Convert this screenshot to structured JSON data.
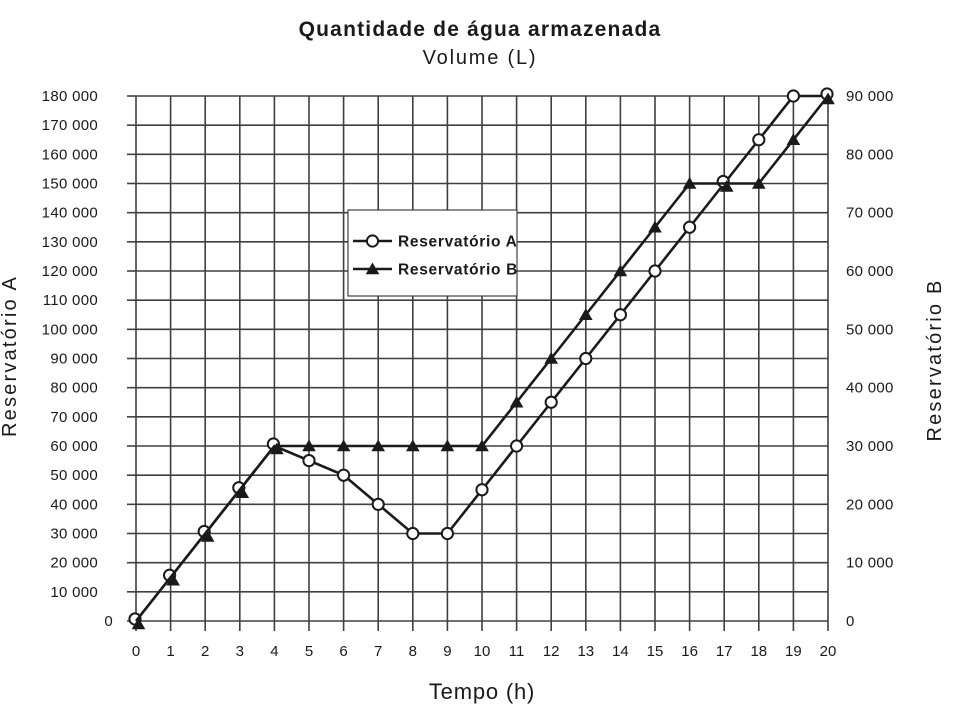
{
  "chart_data": {
    "type": "line",
    "title": "Quantidade de água armazenada",
    "subtitle": "Volume (L)",
    "xlabel": "Tempo (h)",
    "grid": true,
    "background": "#ffffff",
    "colors": {
      "series": "#1a1a1a",
      "grid": "#404040",
      "text": "#1a1a1a"
    },
    "x_axis": {
      "min": 0,
      "max": 20,
      "step": 1,
      "tick_labels": [
        "0",
        "1",
        "2",
        "3",
        "4",
        "5",
        "6",
        "7",
        "8",
        "9",
        "10",
        "11",
        "12",
        "13",
        "14",
        "15",
        "16",
        "17",
        "18",
        "19",
        "20"
      ]
    },
    "left_axis": {
      "label": "Reservatório A",
      "min": 0,
      "max": 180000,
      "step": 10000,
      "tick_labels": [
        "0",
        "10 000",
        "20 000",
        "30 000",
        "40 000",
        "50 000",
        "60 000",
        "70 000",
        "80 000",
        "90 000",
        "100 000",
        "110 000",
        "120 000",
        "130 000",
        "140 000",
        "150 000",
        "160 000",
        "170 000",
        "180 000"
      ]
    },
    "right_axis": {
      "label": "Reservatório B",
      "min": 0,
      "max": 90000,
      "step": 10000,
      "tick_labels": [
        "0",
        "10 000",
        "20 000",
        "30 000",
        "40 000",
        "50 000",
        "60 000",
        "70 000",
        "80 000",
        "90 000"
      ]
    },
    "x": [
      0,
      1,
      2,
      3,
      4,
      5,
      6,
      7,
      8,
      9,
      10,
      11,
      12,
      13,
      14,
      15,
      16,
      17,
      18,
      19,
      20
    ],
    "series": [
      {
        "name": "Reservatório A",
        "axis": "left",
        "marker": "circle",
        "values": [
          0,
          15000,
          30000,
          45000,
          60000,
          55000,
          50000,
          40000,
          30000,
          30000,
          45000,
          60000,
          75000,
          90000,
          105000,
          120000,
          135000,
          150000,
          165000,
          180000,
          180000
        ]
      },
      {
        "name": "Reservatório B",
        "axis": "right",
        "marker": "triangle",
        "values": [
          0,
          7500,
          15000,
          22500,
          30000,
          30000,
          30000,
          30000,
          30000,
          30000,
          30000,
          37500,
          45000,
          52500,
          60000,
          67500,
          75000,
          75000,
          75000,
          82500,
          90000
        ]
      }
    ],
    "legend": {
      "position": "inside-top-center",
      "items": [
        {
          "label": "Reservatório A",
          "marker": "circle"
        },
        {
          "label": "Reservatório B",
          "marker": "triangle"
        }
      ]
    }
  }
}
